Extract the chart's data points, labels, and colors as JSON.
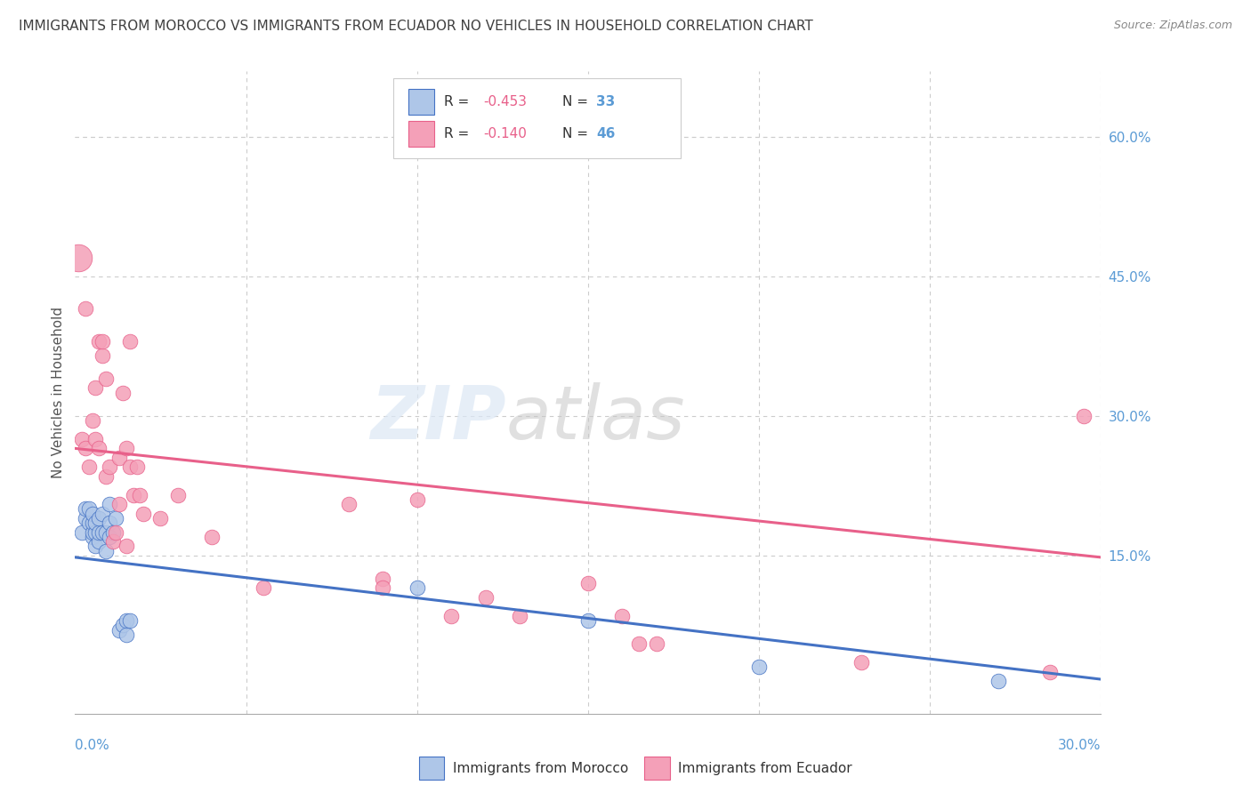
{
  "title": "IMMIGRANTS FROM MOROCCO VS IMMIGRANTS FROM ECUADOR NO VEHICLES IN HOUSEHOLD CORRELATION CHART",
  "source": "Source: ZipAtlas.com",
  "ylabel": "No Vehicles in Household",
  "ytick_labels": [
    "60.0%",
    "45.0%",
    "30.0%",
    "15.0%"
  ],
  "ytick_values": [
    0.6,
    0.45,
    0.3,
    0.15
  ],
  "xlim": [
    0.0,
    0.3
  ],
  "ylim": [
    -0.02,
    0.67
  ],
  "legend_r_morocco": "-0.453",
  "legend_n_morocco": "33",
  "legend_r_ecuador": "-0.140",
  "legend_n_ecuador": "46",
  "color_morocco_fill": "#aec6e8",
  "color_ecuador_fill": "#f4a0b8",
  "color_line_morocco": "#4472c4",
  "color_line_ecuador": "#e8608a",
  "color_axis_blue": "#5b9bd5",
  "color_title": "#404040",
  "morocco_points_x": [
    0.002,
    0.003,
    0.003,
    0.004,
    0.004,
    0.005,
    0.005,
    0.005,
    0.005,
    0.006,
    0.006,
    0.006,
    0.007,
    0.007,
    0.007,
    0.008,
    0.008,
    0.009,
    0.009,
    0.01,
    0.01,
    0.01,
    0.011,
    0.012,
    0.013,
    0.014,
    0.015,
    0.015,
    0.016,
    0.1,
    0.15,
    0.2,
    0.27
  ],
  "morocco_points_y": [
    0.175,
    0.19,
    0.2,
    0.185,
    0.2,
    0.17,
    0.175,
    0.185,
    0.195,
    0.16,
    0.175,
    0.185,
    0.165,
    0.175,
    0.19,
    0.175,
    0.195,
    0.155,
    0.175,
    0.17,
    0.185,
    0.205,
    0.175,
    0.19,
    0.07,
    0.075,
    0.065,
    0.08,
    0.08,
    0.115,
    0.08,
    0.03,
    0.015
  ],
  "ecuador_points_x": [
    0.001,
    0.002,
    0.003,
    0.003,
    0.004,
    0.005,
    0.006,
    0.006,
    0.007,
    0.007,
    0.008,
    0.008,
    0.009,
    0.009,
    0.01,
    0.011,
    0.012,
    0.013,
    0.013,
    0.014,
    0.015,
    0.015,
    0.016,
    0.016,
    0.017,
    0.018,
    0.019,
    0.02,
    0.025,
    0.03,
    0.04,
    0.055,
    0.08,
    0.09,
    0.09,
    0.1,
    0.11,
    0.12,
    0.13,
    0.15,
    0.16,
    0.165,
    0.17,
    0.23,
    0.285,
    0.295
  ],
  "ecuador_points_y": [
    0.47,
    0.275,
    0.415,
    0.265,
    0.245,
    0.295,
    0.275,
    0.33,
    0.38,
    0.265,
    0.365,
    0.38,
    0.34,
    0.235,
    0.245,
    0.165,
    0.175,
    0.205,
    0.255,
    0.325,
    0.265,
    0.16,
    0.245,
    0.38,
    0.215,
    0.245,
    0.215,
    0.195,
    0.19,
    0.215,
    0.17,
    0.115,
    0.205,
    0.125,
    0.115,
    0.21,
    0.085,
    0.105,
    0.085,
    0.12,
    0.085,
    0.055,
    0.055,
    0.035,
    0.025,
    0.3
  ],
  "morocco_trend": [
    0.148,
    0.017
  ],
  "ecuador_trend": [
    0.265,
    0.148
  ],
  "marker_size_base": 120
}
